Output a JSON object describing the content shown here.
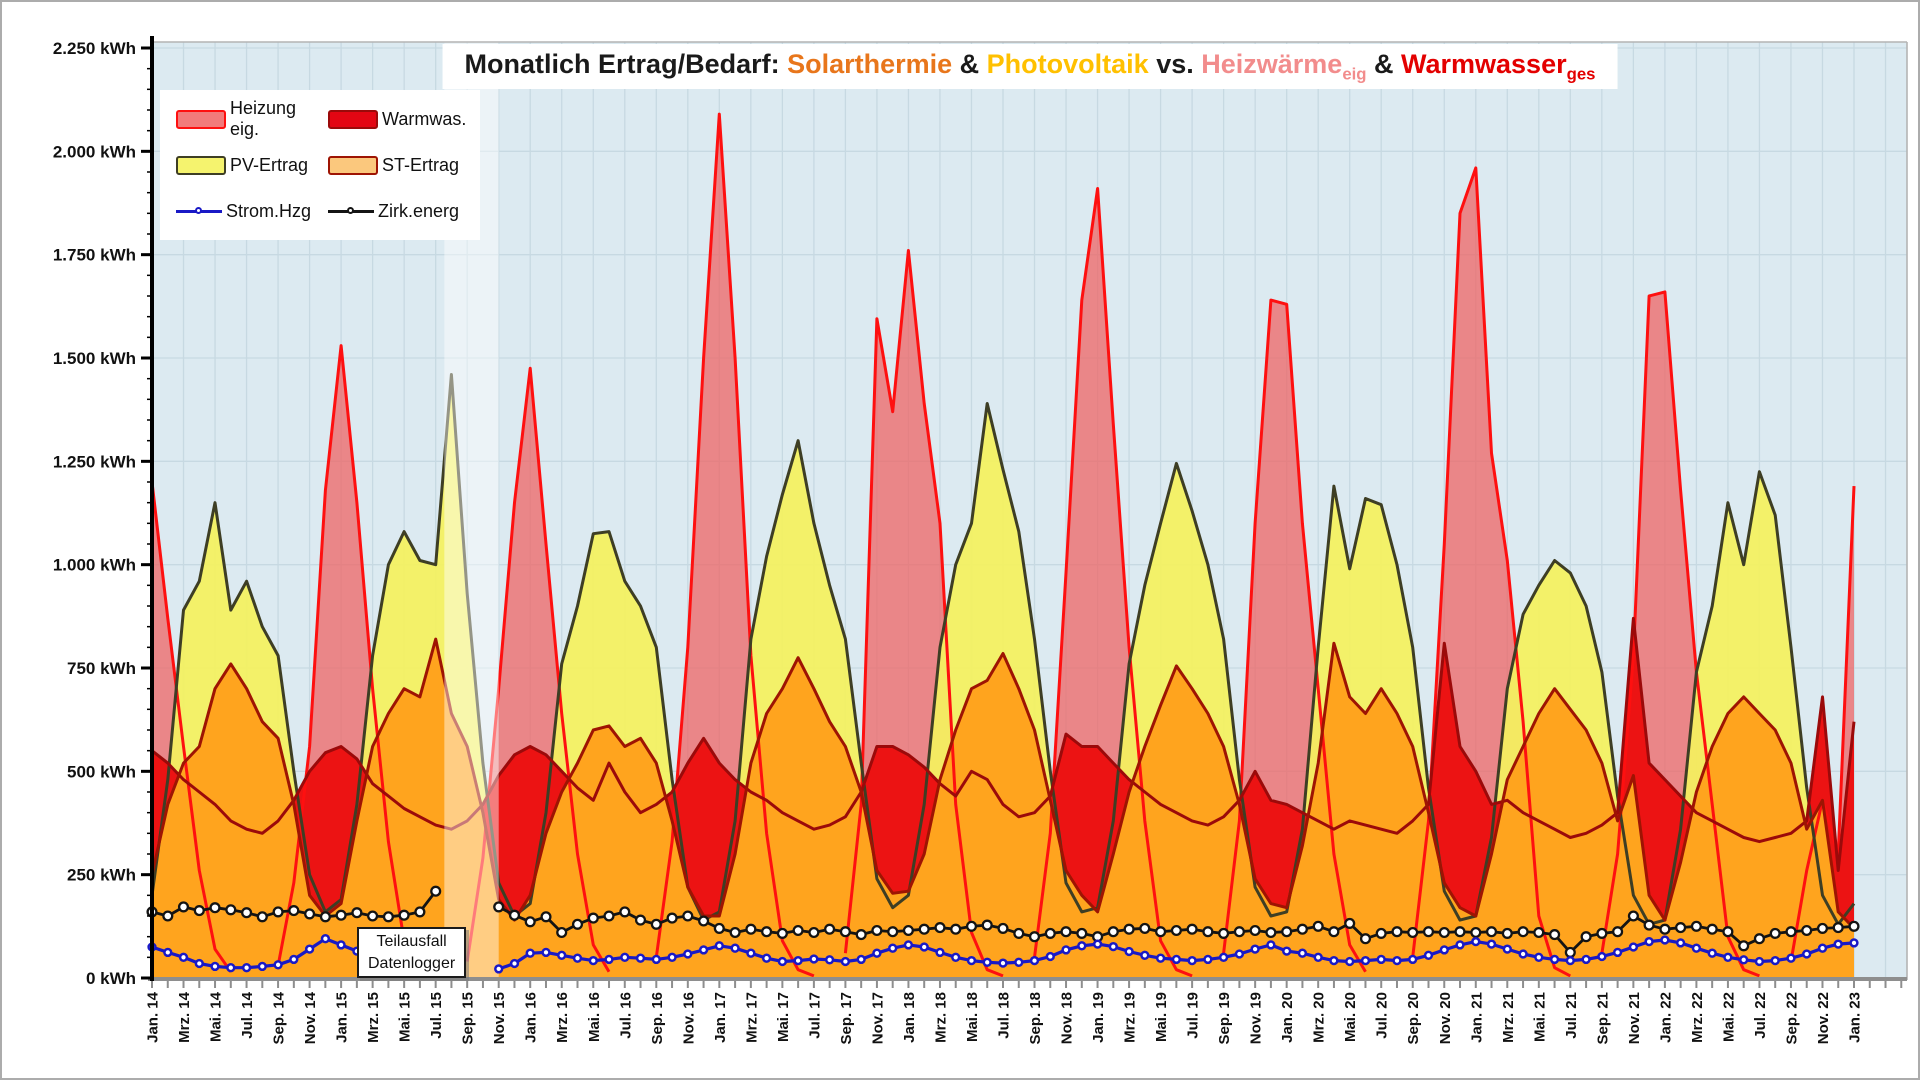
{
  "title": {
    "segments": [
      {
        "text": "Monatlich Ertrag/Bedarf: ",
        "color": "#1a1a1a"
      },
      {
        "text": "Solarthermie",
        "color": "#e8761b"
      },
      {
        "text": " & ",
        "color": "#1a1a1a"
      },
      {
        "text": "Photovoltaik",
        "color": "#ffc000"
      },
      {
        "text": " vs. ",
        "color": "#1a1a1a"
      },
      {
        "text": "Heizwärme",
        "color": "#f28c8c",
        "sub": "eig"
      },
      {
        "text": " & ",
        "color": "#1a1a1a"
      },
      {
        "text": "Warmwasser",
        "color": "#e30000",
        "sub": "ges"
      }
    ]
  },
  "legend": {
    "items": [
      {
        "label": "Heizung eig.",
        "swatch": "area",
        "fill": "#f27b7b",
        "border": "#fe1010"
      },
      {
        "label": "Warmwas.",
        "swatch": "area",
        "fill": "#e30613",
        "border": "#9b0a0a"
      },
      {
        "label": "PV-Ertrag",
        "swatch": "area",
        "fill": "#f5f36e",
        "border": "#3e3e24"
      },
      {
        "label": "ST-Ertrag",
        "swatch": "area",
        "fill": "#fbc87d",
        "border": "#9e1403"
      },
      {
        "label": "Strom.Hzg",
        "swatch": "line",
        "color": "#1919c6"
      },
      {
        "label": "Zirk.energ",
        "swatch": "line",
        "color": "#141414"
      }
    ]
  },
  "annotation": {
    "lines": [
      "Teilausfall",
      "Datenlogger"
    ]
  },
  "chart_data": {
    "type": "combo-area-line",
    "x_start": "Jan. 14",
    "x_end": "Jan. 23",
    "months_count": 109,
    "x_tick_labels": [
      "Jan. 14",
      "Mrz. 14",
      "Mai. 14",
      "Jul. 14",
      "Sep. 14",
      "Nov. 14",
      "Jan. 15",
      "Mrz. 15",
      "Mai. 15",
      "Jul. 15",
      "Sep. 15",
      "Nov. 15",
      "Jan. 16",
      "Mrz. 16",
      "Mai. 16",
      "Jul. 16",
      "Sep. 16",
      "Nov. 16",
      "Jan. 17",
      "Mrz. 17",
      "Mai. 17",
      "Jul. 17",
      "Sep. 17",
      "Nov. 17",
      "Jan. 18",
      "Mrz. 18",
      "Mai. 18",
      "Jul. 18",
      "Sep. 18",
      "Nov. 18",
      "Jan. 19",
      "Mrz. 19",
      "Mai. 19",
      "Jul. 19",
      "Sep. 19",
      "Nov. 19",
      "Jan. 20",
      "Mrz. 20",
      "Mai. 20",
      "Jul. 20",
      "Sep. 20",
      "Nov. 20",
      "Jan. 21",
      "Mrz. 21",
      "Mai. 21",
      "Jul. 21",
      "Sep. 21",
      "Nov. 21",
      "Jan. 22",
      "Mrz. 22",
      "Mai. 22",
      "Jul. 22",
      "Sep. 22",
      "Nov. 22",
      "Jan. 23"
    ],
    "y_tick_labels": [
      "0 kWh",
      "250 kWh",
      "500 kWh",
      "750 kWh",
      "1.000 kWh",
      "1.250 kWh",
      "1.500 kWh",
      "1.750 kWh",
      "2.000 kWh",
      "2.250 kWh"
    ],
    "ylim": [
      0,
      2250
    ],
    "y_major_step": 250,
    "y_minor_step": 50,
    "grid": true,
    "legend_position": "top-left",
    "plot_bg": "#dceaf1",
    "grid_color": "#c7d9e2",
    "data_gap_note": "partial datalogger failure Aug-Okt 15 (washed band, line gap)",
    "series": [
      {
        "name": "Heizung eig.",
        "type": "area",
        "fill": "rgba(240,95,95,0.72)",
        "stroke": "#fe1010",
        "values": [
          1200,
          870,
          560,
          260,
          70,
          15,
          5,
          5,
          30,
          230,
          560,
          1180,
          1530,
          1150,
          700,
          330,
          90,
          15,
          5,
          5,
          40,
          290,
          700,
          1150,
          1475,
          1050,
          640,
          300,
          80,
          15,
          5,
          5,
          50,
          330,
          800,
          1500,
          2090,
          1500,
          780,
          350,
          90,
          20,
          5,
          5,
          60,
          420,
          1595,
          1370,
          1760,
          1390,
          1100,
          420,
          110,
          20,
          5,
          5,
          50,
          350,
          980,
          1640,
          1910,
          1340,
          800,
          380,
          90,
          20,
          5,
          5,
          60,
          380,
          1100,
          1640,
          1630,
          1100,
          700,
          300,
          80,
          15,
          5,
          5,
          50,
          380,
          1050,
          1850,
          1960,
          1270,
          1010,
          620,
          150,
          25,
          5,
          5,
          60,
          300,
          780,
          1650,
          1660,
          1180,
          740,
          420,
          100,
          20,
          5,
          5,
          40,
          260,
          430,
          300,
          1190
        ]
      },
      {
        "name": "PV-Ertrag",
        "type": "area",
        "fill": "rgba(244,241,95,0.93)",
        "stroke": "#3e3e24",
        "values": [
          200,
          480,
          890,
          960,
          1150,
          890,
          960,
          850,
          780,
          500,
          250,
          160,
          190,
          420,
          780,
          1000,
          1080,
          1010,
          1000,
          1460,
          930,
          520,
          230,
          150,
          180,
          400,
          760,
          900,
          1075,
          1080,
          960,
          900,
          800,
          480,
          220,
          140,
          160,
          380,
          820,
          1020,
          1170,
          1300,
          1100,
          950,
          820,
          520,
          240,
          170,
          200,
          420,
          800,
          1000,
          1100,
          1390,
          1230,
          1080,
          820,
          500,
          230,
          160,
          170,
          380,
          760,
          950,
          1100,
          1245,
          1130,
          1000,
          820,
          480,
          220,
          150,
          160,
          360,
          800,
          1190,
          990,
          1160,
          1145,
          1000,
          800,
          460,
          210,
          140,
          150,
          340,
          700,
          880,
          950,
          1010,
          980,
          900,
          740,
          440,
          200,
          130,
          140,
          360,
          740,
          900,
          1150,
          1000,
          1225,
          1120,
          800,
          460,
          200,
          130,
          180
        ]
      },
      {
        "name": "Warmwas.",
        "type": "area",
        "fill": "#ec1313",
        "stroke": "#9b0a0a",
        "values": [
          550,
          520,
          480,
          450,
          420,
          380,
          360,
          350,
          380,
          430,
          500,
          545,
          560,
          530,
          470,
          440,
          410,
          390,
          370,
          360,
          380,
          420,
          490,
          540,
          560,
          540,
          500,
          460,
          430,
          520,
          450,
          400,
          420,
          450,
          520,
          580,
          520,
          480,
          450,
          430,
          400,
          380,
          360,
          370,
          390,
          450,
          560,
          560,
          540,
          510,
          470,
          440,
          500,
          480,
          420,
          390,
          400,
          440,
          590,
          560,
          560,
          520,
          480,
          450,
          420,
          400,
          380,
          370,
          390,
          430,
          500,
          430,
          420,
          400,
          380,
          360,
          380,
          370,
          360,
          350,
          380,
          420,
          810,
          560,
          500,
          420,
          430,
          400,
          380,
          360,
          340,
          350,
          370,
          400,
          870,
          520,
          480,
          440,
          400,
          380,
          360,
          340,
          330,
          340,
          350,
          380,
          680,
          260,
          620
        ]
      },
      {
        "name": "ST-Ertrag",
        "type": "area",
        "fill": "#ffa41e",
        "stroke": "#9e1403",
        "values": [
          250,
          420,
          520,
          560,
          700,
          760,
          700,
          620,
          580,
          420,
          200,
          150,
          180,
          380,
          560,
          640,
          700,
          680,
          820,
          640,
          560,
          400,
          190,
          140,
          200,
          350,
          450,
          520,
          600,
          610,
          560,
          580,
          520,
          380,
          220,
          150,
          150,
          300,
          520,
          640,
          700,
          775,
          700,
          620,
          560,
          450,
          260,
          205,
          210,
          300,
          480,
          600,
          700,
          720,
          785,
          700,
          600,
          430,
          260,
          200,
          160,
          300,
          450,
          560,
          660,
          755,
          700,
          640,
          560,
          420,
          240,
          180,
          170,
          320,
          520,
          810,
          680,
          640,
          700,
          640,
          560,
          400,
          230,
          170,
          150,
          300,
          480,
          560,
          640,
          700,
          650,
          600,
          520,
          380,
          490,
          200,
          140,
          280,
          450,
          560,
          640,
          680,
          640,
          600,
          520,
          360,
          430,
          160,
          120
        ]
      },
      {
        "name": "Strom.Hzg",
        "type": "line",
        "stroke": "#1919c6",
        "values": [
          75,
          62,
          50,
          35,
          28,
          25,
          25,
          28,
          32,
          45,
          70,
          95,
          80,
          65,
          48,
          38,
          40,
          45,
          95,
          null,
          null,
          null,
          22,
          35,
          60,
          62,
          55,
          48,
          42,
          45,
          50,
          48,
          45,
          50,
          58,
          68,
          78,
          72,
          60,
          48,
          40,
          42,
          46,
          44,
          40,
          45,
          60,
          72,
          80,
          75,
          62,
          50,
          42,
          38,
          36,
          38,
          42,
          52,
          68,
          78,
          82,
          76,
          64,
          55,
          48,
          45,
          42,
          45,
          50,
          58,
          70,
          80,
          65,
          60,
          50,
          42,
          40,
          42,
          45,
          42,
          45,
          55,
          68,
          80,
          88,
          82,
          70,
          58,
          50,
          45,
          42,
          45,
          52,
          62,
          75,
          88,
          92,
          85,
          72,
          60,
          50,
          44,
          40,
          42,
          48,
          58,
          72,
          82,
          85
        ]
      },
      {
        "name": "Zirk.energ",
        "type": "line",
        "stroke": "#141414",
        "values": [
          160,
          150,
          172,
          163,
          170,
          165,
          158,
          148,
          160,
          163,
          155,
          148,
          152,
          158,
          150,
          148,
          152,
          160,
          210,
          null,
          null,
          null,
          172,
          152,
          136,
          148,
          110,
          130,
          145,
          150,
          160,
          140,
          130,
          145,
          150,
          138,
          120,
          110,
          118,
          112,
          108,
          115,
          110,
          118,
          112,
          105,
          115,
          112,
          115,
          118,
          122,
          118,
          125,
          128,
          120,
          108,
          100,
          108,
          112,
          108,
          100,
          112,
          118,
          120,
          112,
          115,
          118,
          112,
          108,
          112,
          115,
          110,
          112,
          118,
          125,
          112,
          132,
          95,
          108,
          112,
          110,
          112,
          110,
          112,
          110,
          112,
          108,
          112,
          110,
          105,
          62,
          100,
          108,
          112,
          150,
          128,
          118,
          122,
          125,
          118,
          112,
          78,
          95,
          108,
          112,
          115,
          120,
          122,
          125
        ]
      }
    ]
  }
}
